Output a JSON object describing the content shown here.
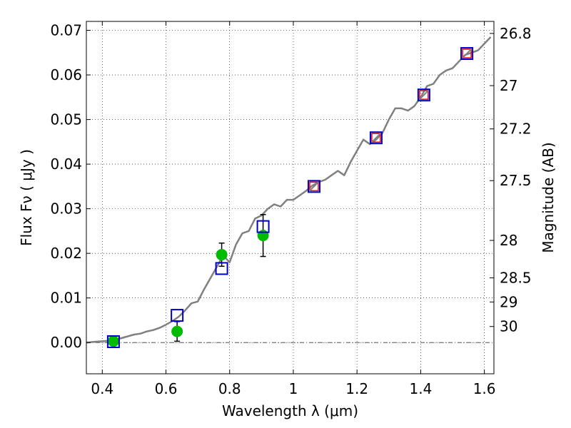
{
  "chart_data": {
    "type": "scatter",
    "xlabel": "Wavelength  λ (μm)",
    "ylabel": "Flux  Fν  ( μJy )",
    "ylabel_right": "Magnitude (AB)",
    "xlim": [
      0.35,
      1.63
    ],
    "ylim": [
      -0.007,
      0.072
    ],
    "grid": true,
    "x_ticks": [
      0.4,
      0.6,
      0.8,
      1.0,
      1.2,
      1.4,
      1.6
    ],
    "x_tick_labels": [
      "0.4",
      "0.6",
      "0.8",
      "1",
      "1.2",
      "1.4",
      "1.6"
    ],
    "y_ticks": [
      0.0,
      0.01,
      0.02,
      0.03,
      0.04,
      0.05,
      0.06,
      0.07
    ],
    "y_tick_labels": [
      "0.00",
      "0.01",
      "0.02",
      "0.03",
      "0.04",
      "0.05",
      "0.06",
      "0.07"
    ],
    "right_ticks": [
      {
        "label": "26.8",
        "flux": 0.0693
      },
      {
        "label": "27",
        "flux": 0.0576
      },
      {
        "label": "27.2",
        "flux": 0.0479
      },
      {
        "label": "27.5",
        "flux": 0.0363
      },
      {
        "label": "28",
        "flux": 0.0229
      },
      {
        "label": "28.5",
        "flux": 0.0145
      },
      {
        "label": "29",
        "flux": 0.0091
      },
      {
        "label": "30",
        "flux": 0.0036
      }
    ],
    "series": [
      {
        "kind": "model_spectrum",
        "color": "#808080",
        "x": [
          0.35,
          0.38,
          0.4,
          0.42,
          0.44,
          0.46,
          0.48,
          0.5,
          0.52,
          0.54,
          0.56,
          0.58,
          0.6,
          0.62,
          0.64,
          0.66,
          0.68,
          0.7,
          0.72,
          0.74,
          0.76,
          0.78,
          0.8,
          0.82,
          0.84,
          0.86,
          0.88,
          0.9,
          0.92,
          0.94,
          0.96,
          0.98,
          1.0,
          1.02,
          1.04,
          1.06,
          1.08,
          1.1,
          1.12,
          1.14,
          1.16,
          1.18,
          1.2,
          1.22,
          1.24,
          1.26,
          1.28,
          1.3,
          1.32,
          1.34,
          1.36,
          1.38,
          1.4,
          1.42,
          1.44,
          1.46,
          1.48,
          1.5,
          1.52,
          1.54,
          1.56,
          1.58,
          1.6,
          1.62
        ],
        "y": [
          0.0,
          0.0002,
          0.0003,
          0.0004,
          0.0006,
          0.001,
          0.0014,
          0.0018,
          0.002,
          0.0025,
          0.0028,
          0.0033,
          0.004,
          0.0048,
          0.0058,
          0.0072,
          0.0088,
          0.0092,
          0.012,
          0.0145,
          0.017,
          0.0195,
          0.018,
          0.022,
          0.0245,
          0.025,
          0.0278,
          0.0285,
          0.03,
          0.031,
          0.0305,
          0.032,
          0.032,
          0.033,
          0.034,
          0.0352,
          0.036,
          0.0365,
          0.0375,
          0.0385,
          0.0375,
          0.0405,
          0.043,
          0.0455,
          0.0445,
          0.0455,
          0.047,
          0.05,
          0.0525,
          0.0525,
          0.052,
          0.053,
          0.055,
          0.0575,
          0.058,
          0.06,
          0.061,
          0.0615,
          0.063,
          0.0645,
          0.065,
          0.0655,
          0.067,
          0.0685
        ]
      },
      {
        "kind": "model_photometry_blue_squares",
        "color": "#0000cc",
        "x": [
          0.435,
          0.635,
          0.775,
          0.905,
          1.065,
          1.26,
          1.41,
          1.545
        ],
        "y": [
          0.0002,
          0.0061,
          0.0166,
          0.026,
          0.035,
          0.0459,
          0.0555,
          0.0648
        ]
      },
      {
        "kind": "observed_red_squares",
        "color": "#ff0000",
        "x": [
          1.065,
          1.26,
          1.41,
          1.545
        ],
        "y": [
          0.035,
          0.0459,
          0.0555,
          0.0648
        ]
      },
      {
        "kind": "observed_green_points_with_errors",
        "color": "#00bb00",
        "x": [
          0.435,
          0.635,
          0.775,
          0.905
        ],
        "y": [
          0.0003,
          0.0025,
          0.0197,
          0.024
        ],
        "yerr": [
          0.0,
          0.0022,
          0.0026,
          0.0047
        ]
      }
    ]
  }
}
